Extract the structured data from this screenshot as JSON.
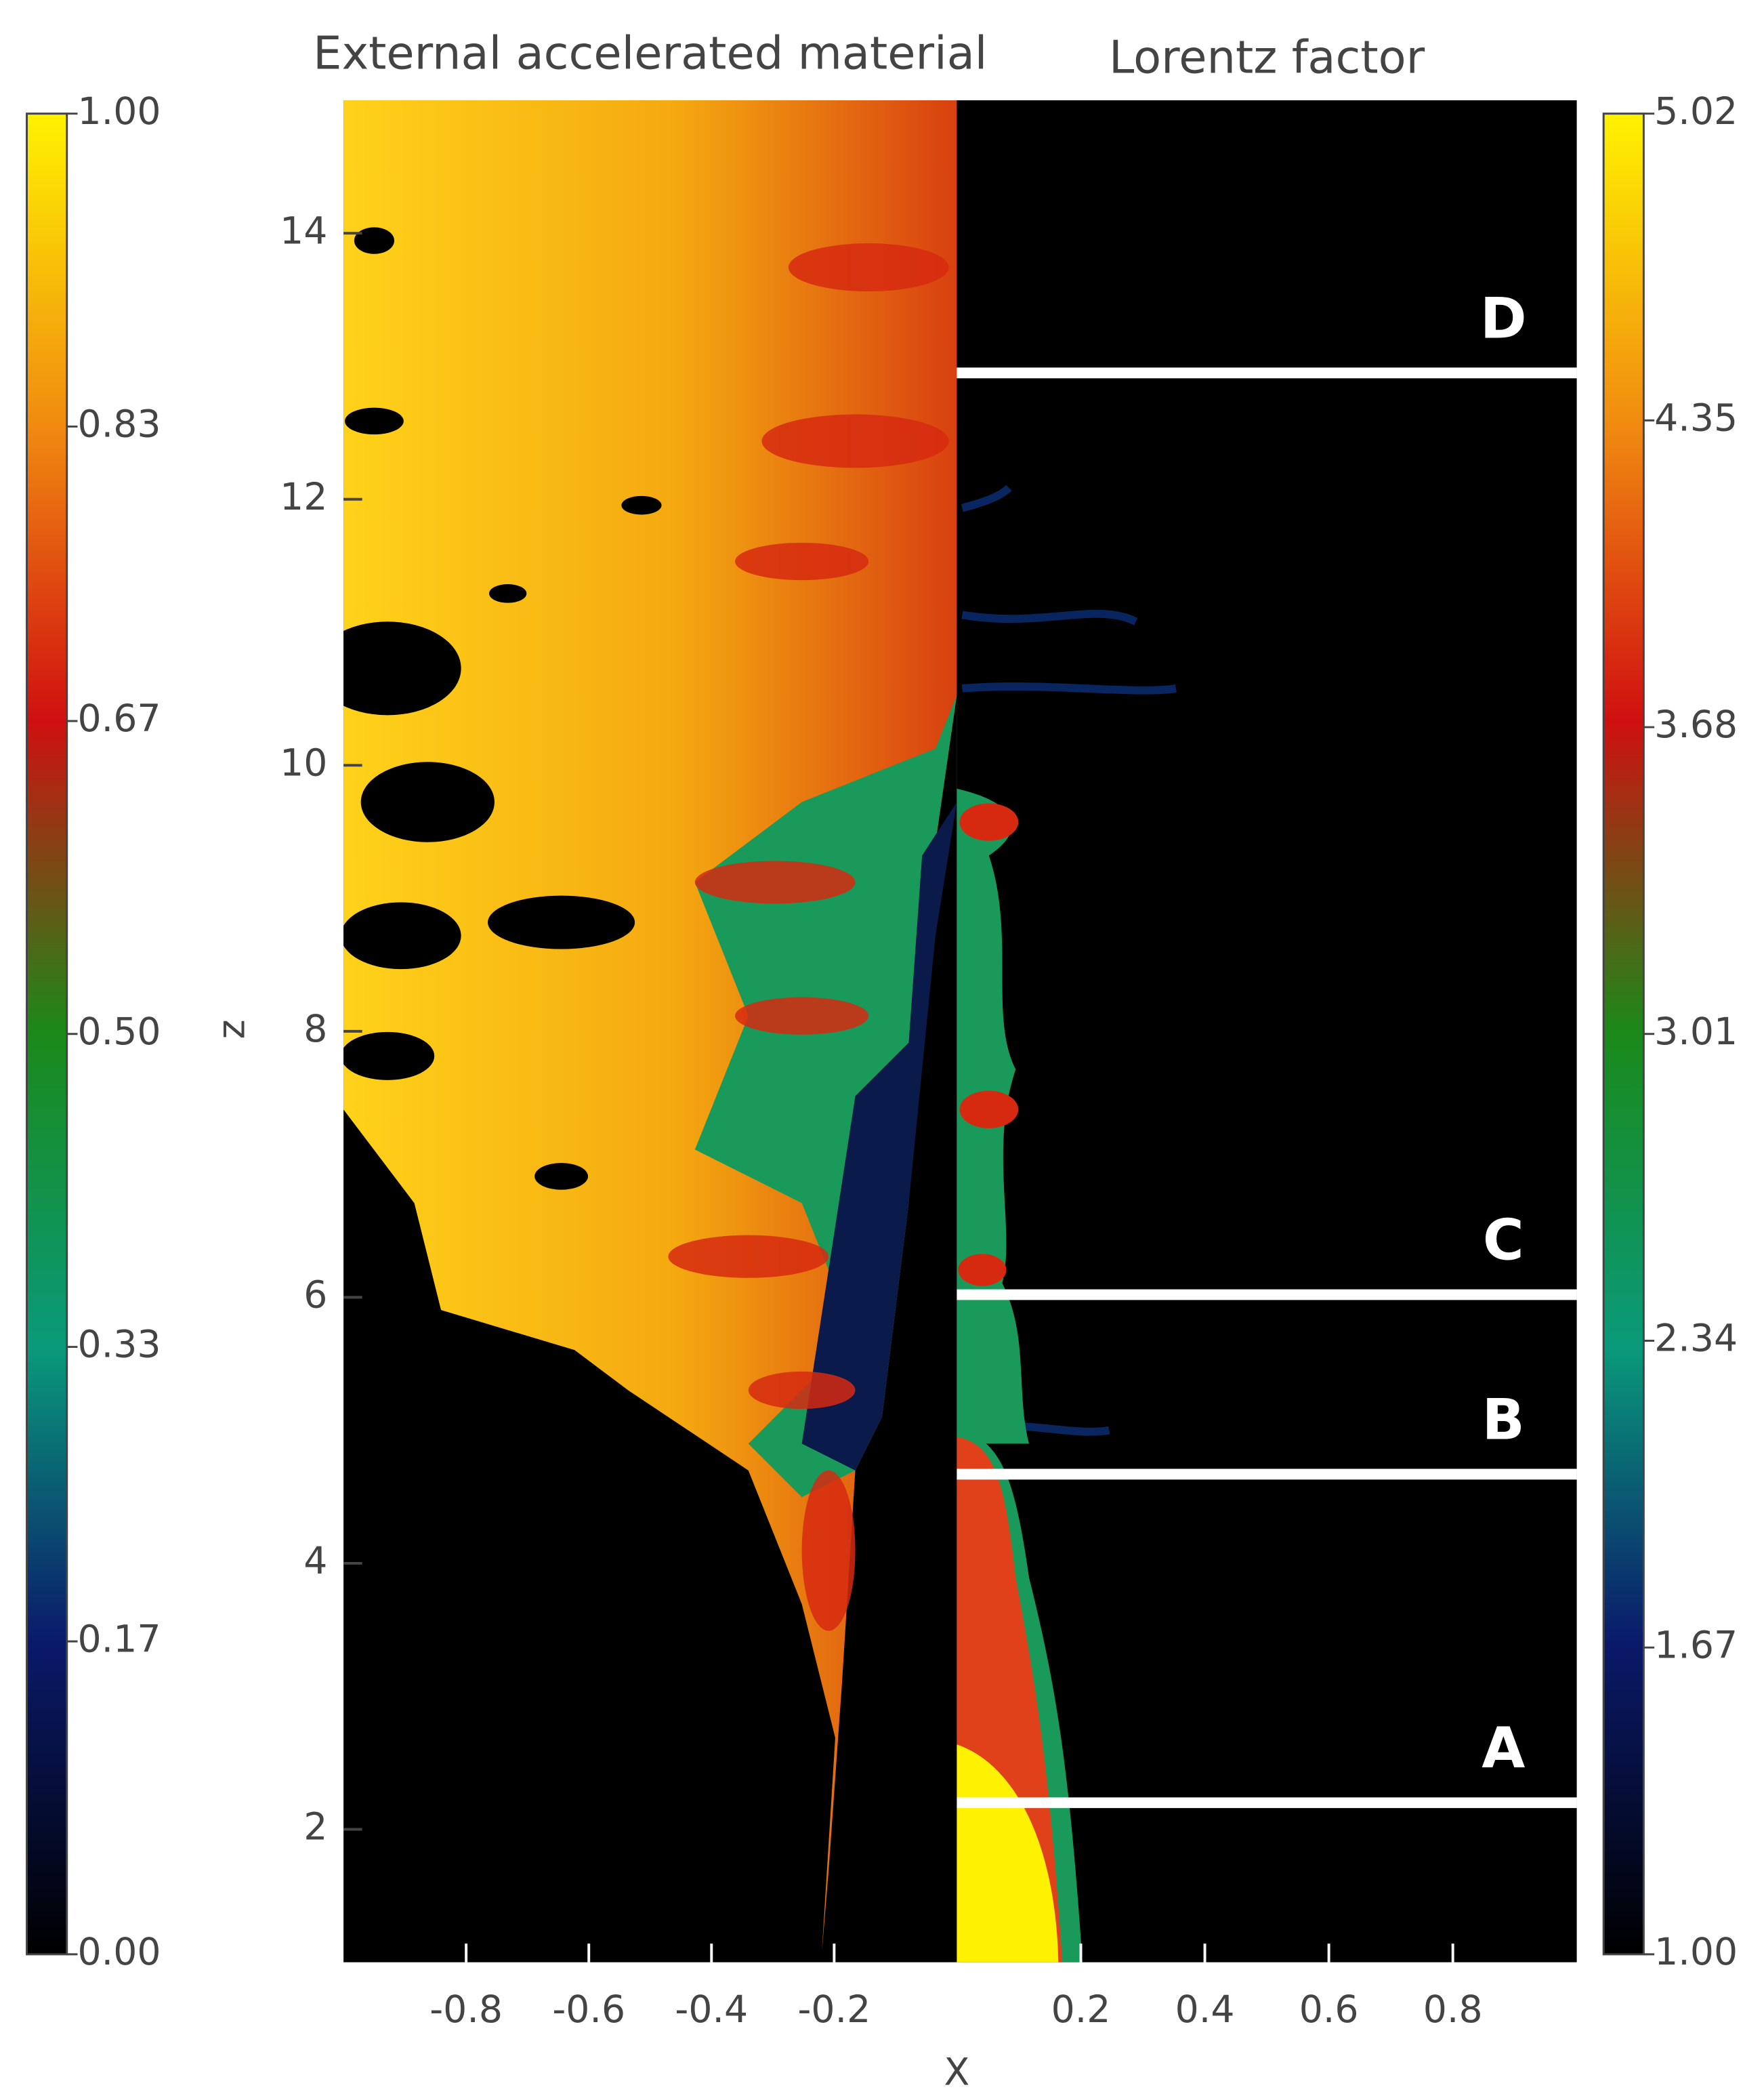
{
  "chart_data": [
    {
      "type": "heatmap",
      "title": "External accelerated material",
      "xlabel": "X",
      "ylabel": "z",
      "xlim": [
        -1,
        0
      ],
      "xticks": [
        -0.8,
        -0.6,
        -0.4,
        -0.2
      ],
      "ylim": [
        1,
        15
      ],
      "yticks": [
        2,
        4,
        6,
        8,
        10,
        12,
        14
      ],
      "colorbar": {
        "lim": [
          0,
          1
        ],
        "ticks": [
          {
            "value": 0,
            "label": "0.00"
          },
          0.17,
          0.33,
          {
            "value": 0.5,
            "label": "0.50"
          },
          0.67,
          0.83,
          {
            "value": 1,
            "label": "1.00"
          }
        ]
      }
    },
    {
      "type": "heatmap",
      "title": "Lorentz factor",
      "xlim": [
        0,
        1
      ],
      "xticks": [
        0.2,
        0.4,
        0.6,
        0.8
      ],
      "ylim": [
        1,
        15
      ],
      "colorbar": {
        "lim": [
          1,
          5.02
        ],
        "ticks": [
          {
            "value": 1,
            "label": "1.00"
          },
          1.67,
          2.34,
          3.01,
          3.68,
          4.35,
          5.02
        ]
      },
      "annotations": [
        {
          "label": "A",
          "z": 2.2
        },
        {
          "label": "B",
          "z": 4.67
        },
        {
          "label": "C",
          "z": 6.02
        },
        {
          "label": "D",
          "z": 12.95
        }
      ]
    }
  ]
}
